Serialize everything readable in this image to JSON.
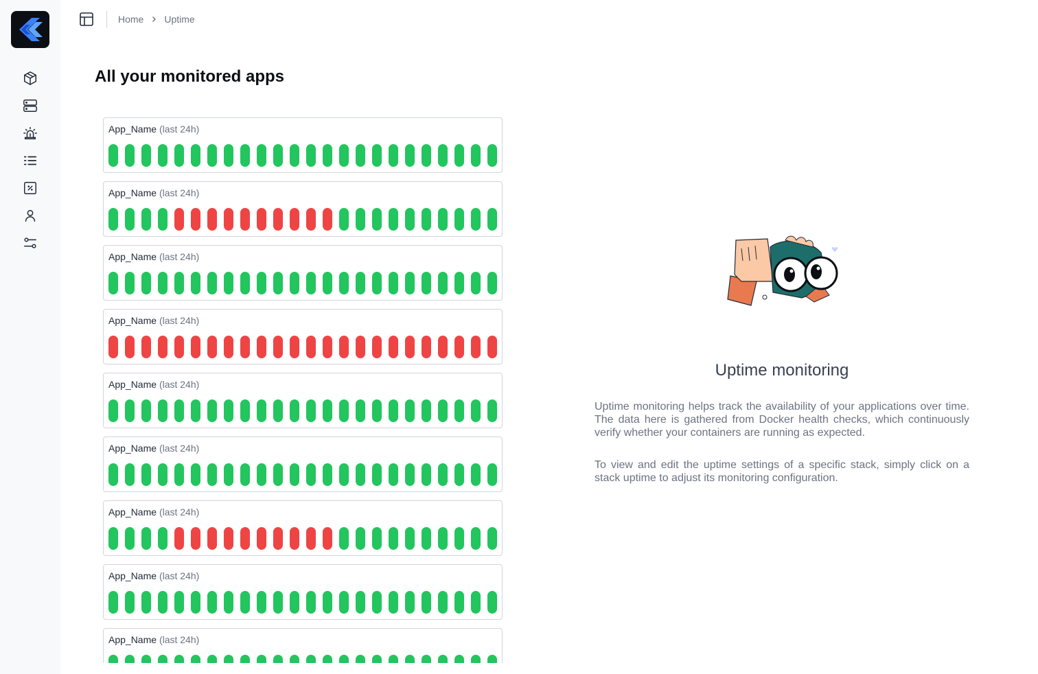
{
  "sidebar": {
    "logo": "app-logo",
    "items": [
      {
        "icon": "package-icon"
      },
      {
        "icon": "server-icon"
      },
      {
        "icon": "alarm-icon"
      },
      {
        "icon": "list-icon"
      },
      {
        "icon": "percent-icon"
      },
      {
        "icon": "user-icon"
      },
      {
        "icon": "settings-sliders-icon"
      }
    ]
  },
  "breadcrumb": {
    "home": "Home",
    "current": "Uptime"
  },
  "page": {
    "title": "All your monitored apps"
  },
  "apps": [
    {
      "name": "App_Name",
      "period": "(last 24h)",
      "status": [
        1,
        1,
        1,
        1,
        1,
        1,
        1,
        1,
        1,
        1,
        1,
        1,
        1,
        1,
        1,
        1,
        1,
        1,
        1,
        1,
        1,
        1,
        1,
        1
      ]
    },
    {
      "name": "App_Name",
      "period": "(last 24h)",
      "status": [
        1,
        1,
        1,
        1,
        0,
        0,
        0,
        0,
        0,
        0,
        0,
        0,
        0,
        0,
        1,
        1,
        1,
        1,
        1,
        1,
        1,
        1,
        1,
        1
      ]
    },
    {
      "name": "App_Name",
      "period": "(last 24h)",
      "status": [
        1,
        1,
        1,
        1,
        1,
        1,
        1,
        1,
        1,
        1,
        1,
        1,
        1,
        1,
        1,
        1,
        1,
        1,
        1,
        1,
        1,
        1,
        1,
        1
      ]
    },
    {
      "name": "App_Name",
      "period": "(last 24h)",
      "status": [
        0,
        0,
        0,
        0,
        0,
        0,
        0,
        0,
        0,
        0,
        0,
        0,
        0,
        0,
        0,
        0,
        0,
        0,
        0,
        0,
        0,
        0,
        0,
        0
      ]
    },
    {
      "name": "App_Name",
      "period": "(last 24h)",
      "status": [
        1,
        1,
        1,
        1,
        1,
        1,
        1,
        1,
        1,
        1,
        1,
        1,
        1,
        1,
        1,
        1,
        1,
        1,
        1,
        1,
        1,
        1,
        1,
        1
      ]
    },
    {
      "name": "App_Name",
      "period": "(last 24h)",
      "status": [
        1,
        1,
        1,
        1,
        1,
        1,
        1,
        1,
        1,
        1,
        1,
        1,
        1,
        1,
        1,
        1,
        1,
        1,
        1,
        1,
        1,
        1,
        1,
        1
      ]
    },
    {
      "name": "App_Name",
      "period": "(last 24h)",
      "status": [
        1,
        1,
        1,
        1,
        0,
        0,
        0,
        0,
        0,
        0,
        0,
        0,
        0,
        0,
        1,
        1,
        1,
        1,
        1,
        1,
        1,
        1,
        1,
        1
      ]
    },
    {
      "name": "App_Name",
      "period": "(last 24h)",
      "status": [
        1,
        1,
        1,
        1,
        1,
        1,
        1,
        1,
        1,
        1,
        1,
        1,
        1,
        1,
        1,
        1,
        1,
        1,
        1,
        1,
        1,
        1,
        1,
        1
      ]
    },
    {
      "name": "App_Name",
      "period": "(last 24h)",
      "status": [
        1,
        1,
        1,
        1,
        1,
        1,
        1,
        1,
        1,
        1,
        1,
        1,
        1,
        1,
        1,
        1,
        1,
        1,
        1,
        1,
        1,
        1,
        1,
        1
      ]
    }
  ],
  "info": {
    "title": "Uptime monitoring",
    "paragraph1": "Uptime monitoring helps track the availability of your applications over time. The data here is gathered from Docker health checks, which continuously verify whether your containers are running as expected.",
    "paragraph2": "To view and edit the uptime settings of a specific stack, simply click on a stack uptime to adjust its monitoring configuration."
  },
  "colors": {
    "up": "#22c55e",
    "down": "#ef4444",
    "accent": "#3b82f6"
  }
}
